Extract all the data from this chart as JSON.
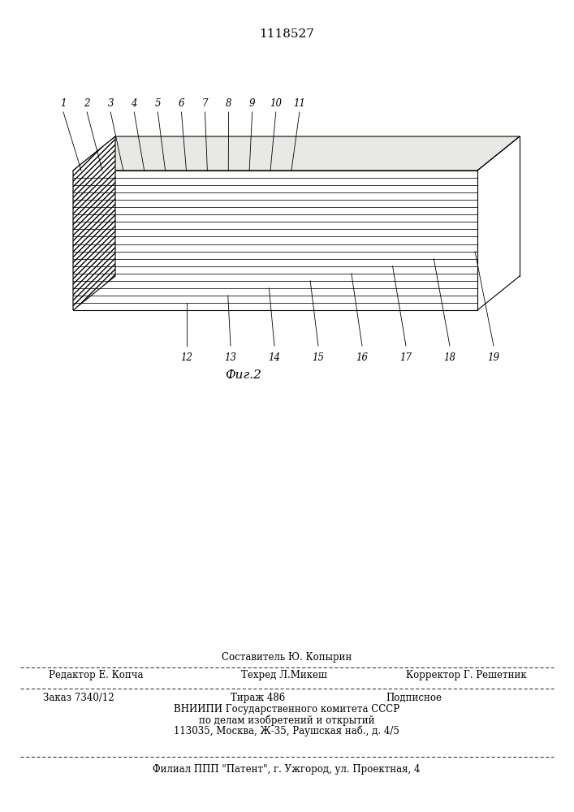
{
  "title": "1118527",
  "title_fontsize": 11,
  "fig_caption": "Фиг.2",
  "fig_caption_fontsize": 11,
  "background_color": "#ffffff",
  "line_color": "#000000",
  "num_front_layers": 19,
  "top_labels": [
    "1",
    "2",
    "3",
    "4",
    "5",
    "6",
    "7",
    "8",
    "9",
    "10",
    "11"
  ],
  "bottom_labels": [
    "12",
    "13",
    "14",
    "15",
    "16",
    "17",
    "18",
    "19"
  ],
  "footer_line1": "Составитель Ю. Копырин",
  "footer_line2_left": "Редактор Е. Копча",
  "footer_line2_mid": "Техред Л.Микеш",
  "footer_line2_right": "Корректор Г. Решетник",
  "footer_line3_left": "Заказ 7340/12",
  "footer_line3_mid": "Тираж 486",
  "footer_line3_right": "Подписное",
  "footer_line4": "ВНИИПИ Государственного комитета СССР",
  "footer_line5": "по делам изобретений и открытий",
  "footer_line6": "113035, Москва, Ж-35, Раушская наб., д. 4/5",
  "footer_line7": "Филиал ППП \"Патент\", г. Ужгород, ул. Проектная, 4",
  "footer_fontsize": 8.5
}
